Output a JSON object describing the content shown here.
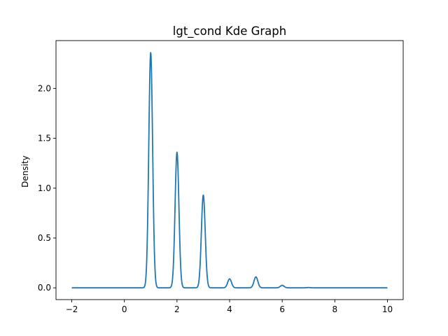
{
  "chart_data": {
    "type": "line",
    "title": "lgt_cond Kde Graph",
    "xlabel": "",
    "ylabel": "Density",
    "xlim": [
      -2.6,
      10.6
    ],
    "ylim": [
      -0.118,
      2.48
    ],
    "xticks": [
      -2,
      0,
      2,
      4,
      6,
      8,
      10
    ],
    "xtick_labels": [
      "−2",
      "0",
      "2",
      "4",
      "6",
      "8",
      "10"
    ],
    "yticks": [
      0.0,
      0.5,
      1.0,
      1.5,
      2.0
    ],
    "ytick_labels": [
      "0.0",
      "0.5",
      "1.0",
      "1.5",
      "2.0"
    ],
    "grid": false,
    "color": "#1f77b4",
    "x_range": [
      -2,
      10
    ],
    "peaks": [
      {
        "x": 1,
        "density": 2.36
      },
      {
        "x": 2,
        "density": 1.36
      },
      {
        "x": 3,
        "density": 0.93
      },
      {
        "x": 4,
        "density": 0.09
      },
      {
        "x": 5,
        "density": 0.11
      },
      {
        "x": 6,
        "density": 0.025
      },
      {
        "x": 7,
        "density": 0.003
      }
    ],
    "bandwidth": 0.073
  }
}
